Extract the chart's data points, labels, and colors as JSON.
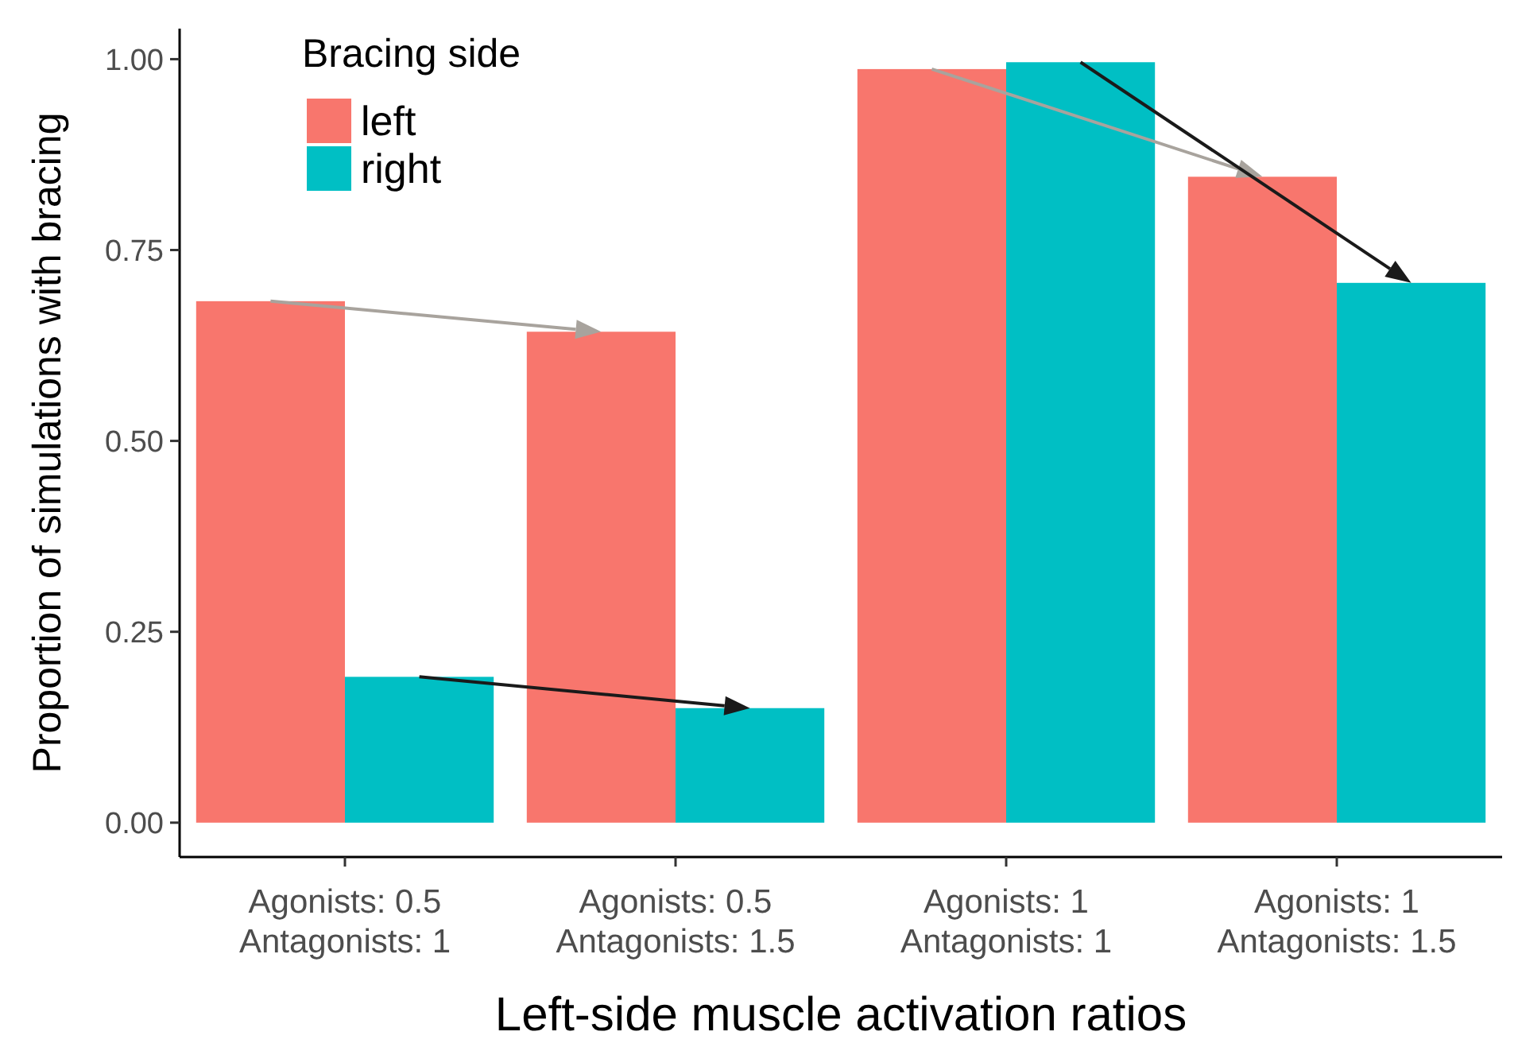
{
  "chart_data": {
    "type": "bar",
    "xlabel": "Left-side muscle activation ratios",
    "ylabel": "Proportion of simulations with bracing",
    "legend_title": "Bracing side",
    "categories": [
      "Agonists: 0.5\nAntagonists: 1",
      "Agonists: 0.5\nAntagonists: 1.5",
      "Agonists: 1\nAntagonists: 1",
      "Agonists: 1\nAntagonists: 1.5"
    ],
    "series": [
      {
        "name": "left",
        "color": "#f8766d",
        "values": [
          0.683,
          0.643,
          0.987,
          0.846
        ]
      },
      {
        "name": "right",
        "color": "#00bfc4",
        "values": [
          0.191,
          0.15,
          0.996,
          0.707
        ]
      }
    ],
    "ylim": [
      -0.045,
      1.04
    ],
    "yticks": [
      {
        "value": 0,
        "label": "0.00"
      },
      {
        "value": 0.25,
        "label": "0.25"
      },
      {
        "value": 0.5,
        "label": "0.50"
      },
      {
        "value": 0.75,
        "label": "0.75"
      },
      {
        "value": 1,
        "label": "1.00"
      }
    ],
    "legend": "top left"
  }
}
